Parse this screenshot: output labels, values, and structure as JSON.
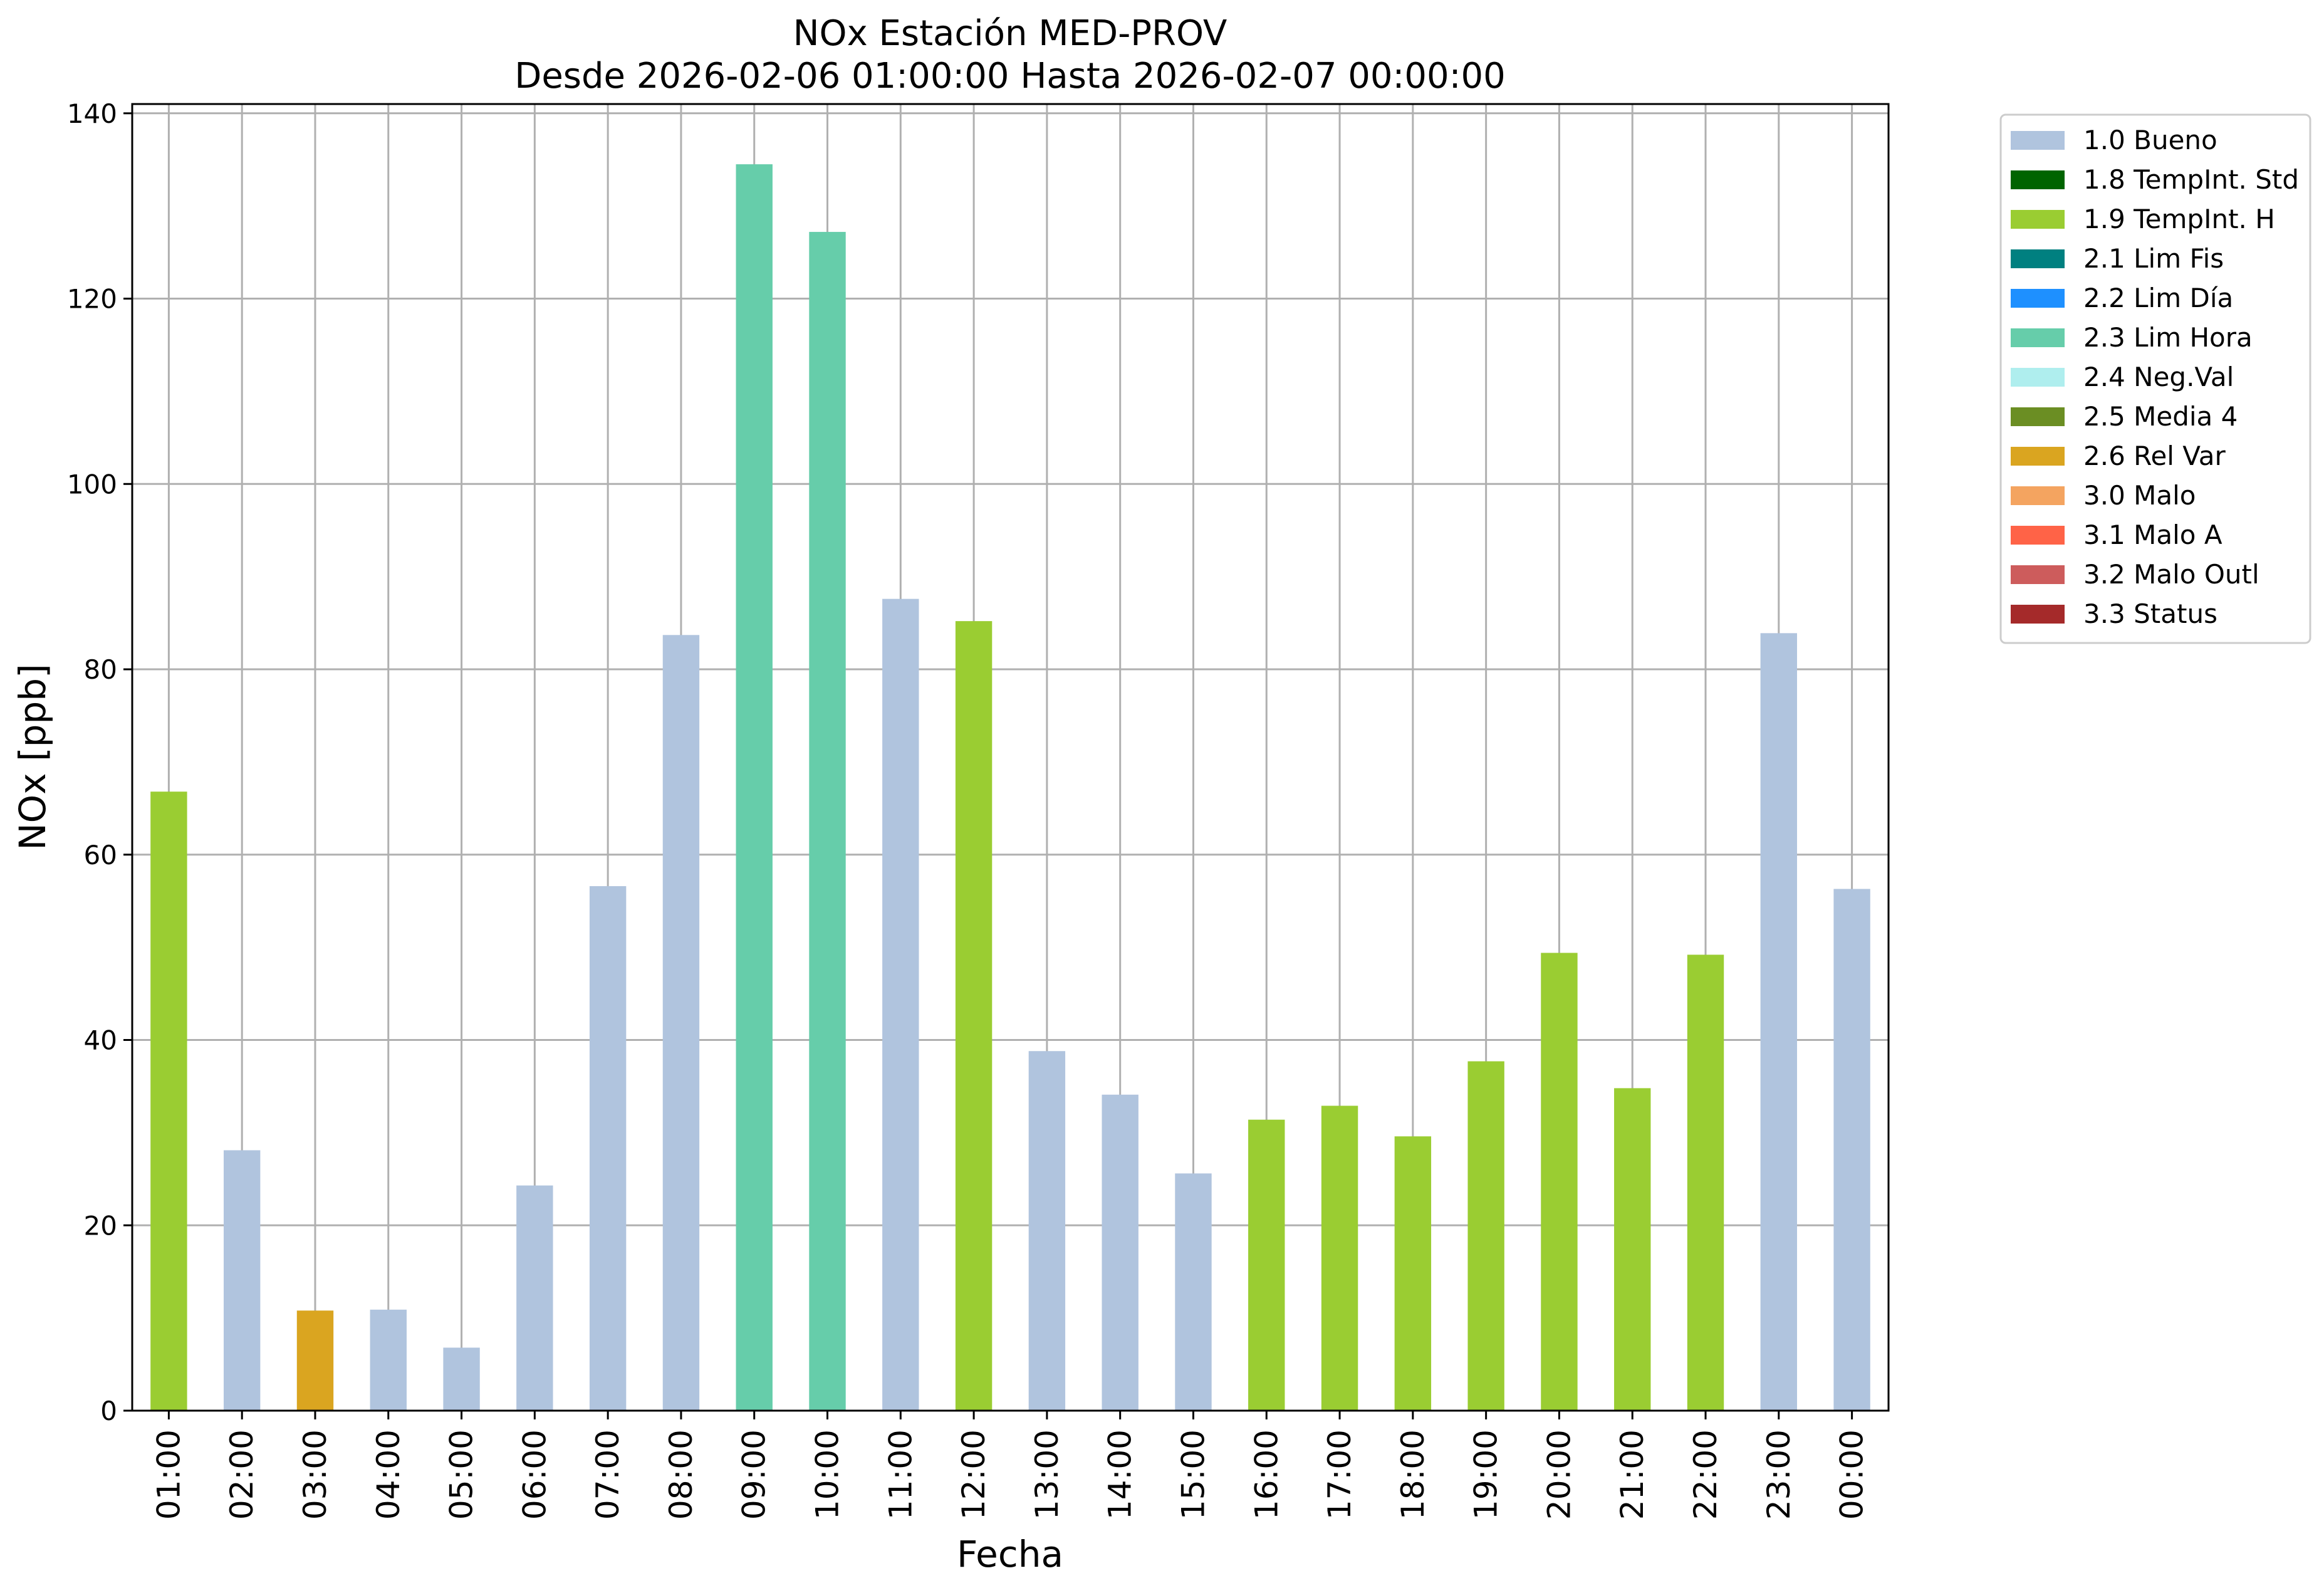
{
  "chart_data": {
    "type": "bar",
    "title": "NOx Estación MED-PROV",
    "subtitle": "Desde 2026-02-06 01:00:00 Hasta 2026-02-07 00:00:00",
    "xlabel": "Fecha",
    "ylabel": "NOx [ppb]",
    "ylim": [
      0,
      141
    ],
    "yticks": [
      0,
      20,
      40,
      60,
      80,
      100,
      120,
      140
    ],
    "grid": true,
    "legend_position": "outside-top-right",
    "categories": [
      "01:00",
      "02:00",
      "03:00",
      "04:00",
      "05:00",
      "06:00",
      "07:00",
      "08:00",
      "09:00",
      "10:00",
      "11:00",
      "12:00",
      "13:00",
      "14:00",
      "15:00",
      "16:00",
      "17:00",
      "18:00",
      "19:00",
      "20:00",
      "21:00",
      "22:00",
      "23:00",
      "00:00"
    ],
    "values": [
      66.8,
      28.1,
      10.8,
      10.9,
      6.8,
      24.3,
      56.6,
      83.7,
      134.5,
      127.2,
      87.6,
      85.2,
      38.8,
      34.1,
      25.6,
      31.4,
      32.9,
      29.6,
      37.7,
      49.4,
      34.8,
      49.2,
      83.9,
      56.3
    ],
    "flags": [
      "1.9",
      "1.0",
      "2.6",
      "1.0",
      "1.0",
      "1.0",
      "1.0",
      "1.0",
      "2.3",
      "2.3",
      "1.0",
      "1.9",
      "1.0",
      "1.0",
      "1.0",
      "1.9",
      "1.9",
      "1.9",
      "1.9",
      "1.9",
      "1.9",
      "1.9",
      "1.0",
      "1.0"
    ],
    "legend": [
      {
        "code": "1.0",
        "label": "1.0 Bueno",
        "color": "#b0c4de"
      },
      {
        "code": "1.8",
        "label": "1.8 TempInt. Std",
        "color": "#006400"
      },
      {
        "code": "1.9",
        "label": "1.9 TempInt. H",
        "color": "#9acd32"
      },
      {
        "code": "2.1",
        "label": "2.1 Lim Fis",
        "color": "#008080"
      },
      {
        "code": "2.2",
        "label": "2.2 Lim Día",
        "color": "#1e90ff"
      },
      {
        "code": "2.3",
        "label": "2.3 Lim Hora",
        "color": "#66cdaa"
      },
      {
        "code": "2.4",
        "label": "2.4 Neg.Val",
        "color": "#afeeee"
      },
      {
        "code": "2.5",
        "label": "2.5 Media 4",
        "color": "#6b8e23"
      },
      {
        "code": "2.6",
        "label": "2.6 Rel Var",
        "color": "#daa520"
      },
      {
        "code": "3.0",
        "label": "3.0 Malo",
        "color": "#f4a460"
      },
      {
        "code": "3.1",
        "label": "3.1 Malo A",
        "color": "#ff6347"
      },
      {
        "code": "3.2",
        "label": "3.2 Malo Outl",
        "color": "#cd5c5c"
      },
      {
        "code": "3.3",
        "label": "3.3 Status",
        "color": "#a52a2a"
      }
    ]
  }
}
